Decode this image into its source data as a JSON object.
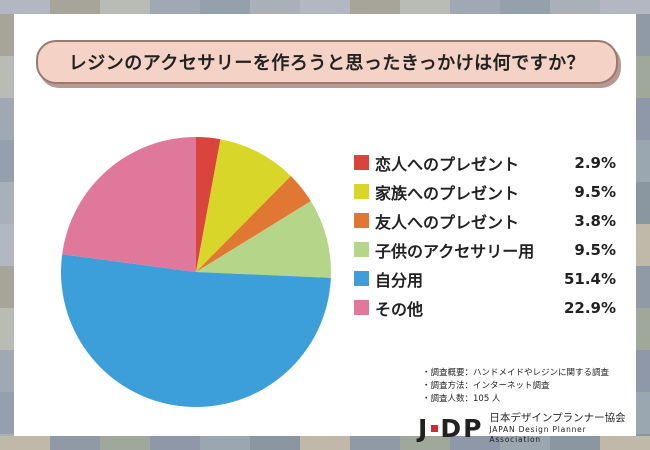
{
  "title": "レジンのアクセサリーを作ろうと思ったきっかけは何ですか？",
  "colors": {
    "恋人へのプレゼント": "#d9443c",
    "家族へのプレゼント": "#d8d628",
    "友人へのプレゼント": "#e07833",
    "子供のアクセサリー用": "#b5d588",
    "自分用": "#3d9fd9",
    "その他": "#e0789c"
  },
  "chart_data": {
    "type": "pie",
    "title": "レジンのアクセサリーを作ろうと思ったきっかけは何ですか？",
    "categories": [
      "恋人へのプレゼント",
      "家族へのプレゼント",
      "友人へのプレゼント",
      "子供のアクセサリー用",
      "自分用",
      "その他"
    ],
    "values": [
      2.9,
      9.5,
      3.8,
      9.5,
      51.4,
      22.9
    ],
    "value_labels": [
      "2.9%",
      "9.5%",
      "3.8%",
      "9.5%",
      "51.4%",
      "22.9%"
    ],
    "unit": "%",
    "legend_position": "right",
    "start": "12 o'clock",
    "direction": "clockwise"
  },
  "notes": [
    "・調査概要：ハンドメイドやレジンに関する調査",
    "・調査方法：インターネット調査",
    "・調査人数：105 人"
  ],
  "logo": {
    "mark_left": "J",
    "mark_mid": "D",
    "mark_right": "P",
    "name_jp": "日本デザインプランナー協会",
    "name_en": "JAPAN Design Planner Association"
  }
}
